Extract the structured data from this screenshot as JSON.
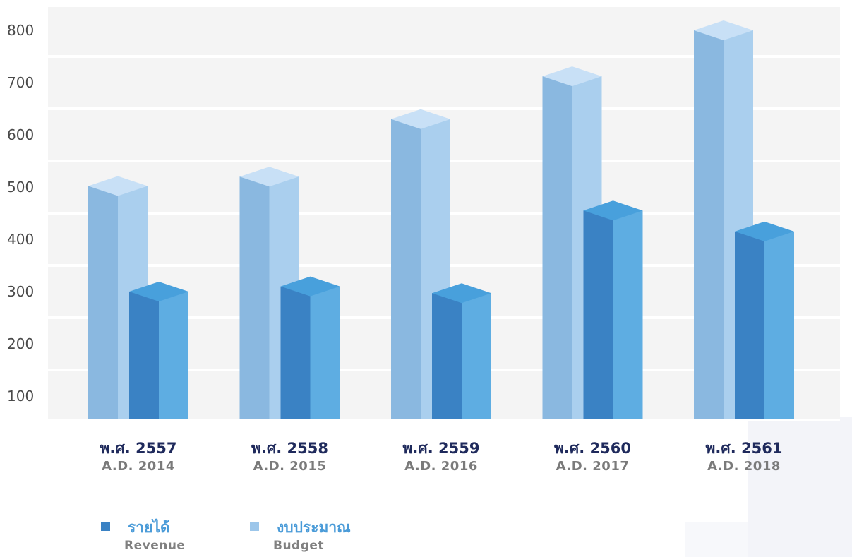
{
  "chart_data": {
    "type": "bar",
    "categories": [
      "พ.ศ. 2557",
      "พ.ศ. 2558",
      "พ.ศ. 2559",
      "พ.ศ. 2560",
      "พ.ศ. 2561"
    ],
    "category_sublabels": [
      "A.D. 2014",
      "A.D. 2015",
      "A.D. 2016",
      "A.D. 2017",
      "A.D. 2018"
    ],
    "series": [
      {
        "name": "รายได้",
        "name_en": "Revenue",
        "values": [
          300,
          310,
          297,
          455,
          415
        ],
        "color": "#3a82c4"
      },
      {
        "name": "งบประมาณ",
        "name_en": "Budget",
        "values": [
          502,
          520,
          630,
          712,
          800
        ],
        "color": "#8fbce3"
      }
    ],
    "yticks": [
      100,
      200,
      300,
      400,
      500,
      600,
      700,
      800
    ],
    "ylim": [
      58,
      865
    ],
    "grid": true,
    "legend_position": "bottom-left",
    "colors": {
      "grid": "#ffffff",
      "plot_bg": "#f4f4f4",
      "thai_label": "#1f2a5c",
      "en_label": "#7a7a7a",
      "legend_thai": "#4a9bd8"
    }
  }
}
